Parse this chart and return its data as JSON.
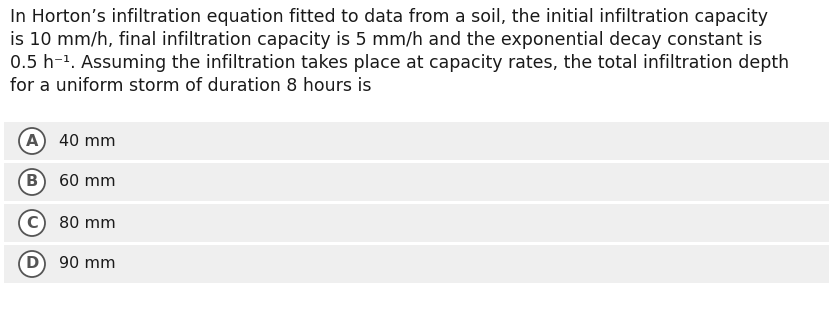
{
  "bg_color": "#ffffff",
  "question_text_lines": [
    "In Horton’s infiltration equation fitted to data from a soil, the initial infiltration capacity",
    "is 10 mm/h, final infiltration capacity is 5 mm/h and the exponential decay constant is",
    "0.5 h⁻¹. Assuming the infiltration takes place at capacity rates, the total infiltration depth",
    "for a uniform storm of duration 8 hours is"
  ],
  "options": [
    {
      "label": "A",
      "text": "40 mm"
    },
    {
      "label": "B",
      "text": "60 mm"
    },
    {
      "label": "C",
      "text": "80 mm"
    },
    {
      "label": "D",
      "text": "90 mm"
    }
  ],
  "question_fontsize": 12.5,
  "option_fontsize": 11.5,
  "label_fontsize": 11.5,
  "text_color": "#1a1a1a",
  "option_bg_color": "#efefef",
  "separator_color": "#ffffff",
  "circle_edge_color": "#555555",
  "circle_fill_color": "#ffffff",
  "fig_width": 8.33,
  "fig_height": 3.31,
  "dpi": 100
}
